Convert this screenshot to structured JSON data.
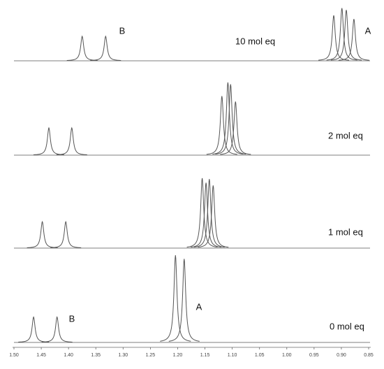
{
  "chart_data": {
    "type": "nmr",
    "color": "#555555",
    "xlim": [
      1.5,
      0.85
    ],
    "xticks": [
      {
        "value": 1.5,
        "label": "1.50"
      },
      1.45,
      {
        "value": 1.4,
        "label": "1.40"
      },
      1.35,
      {
        "value": 1.3,
        "label": "1.30"
      },
      1.25,
      {
        "value": 1.2,
        "label": "1.20"
      },
      1.15,
      {
        "value": 1.1,
        "label": "1.10"
      },
      1.05,
      {
        "value": 1.0,
        "label": "1.00"
      },
      0.95,
      {
        "value": 0.9,
        "label": "0.90"
      },
      0.85
    ],
    "ylim": [
      0,
      100
    ],
    "series": [
      {
        "name": "10 mol eq",
        "x": [
          1.375,
          1.332,
          0.914,
          0.899,
          0.891,
          0.877
        ],
        "values": [
          27,
          27,
          50,
          58,
          56,
          46
        ],
        "annotations": [
          "B",
          "A"
        ]
      },
      {
        "name": "2 mol eq",
        "x": [
          1.436,
          1.394,
          1.119,
          1.108,
          1.103,
          1.094
        ],
        "values": [
          30,
          30,
          65,
          80,
          78,
          59
        ],
        "annotations": []
      },
      {
        "name": "1 mol eq",
        "x": [
          1.448,
          1.405,
          1.155,
          1.148,
          1.142,
          1.135
        ],
        "values": [
          29,
          29,
          77,
          72,
          76,
          69
        ],
        "annotations": []
      },
      {
        "name": "0 mol eq",
        "x": [
          1.464,
          1.421,
          1.204,
          1.188
        ],
        "values": [
          28,
          28,
          96,
          92
        ],
        "annotations": [
          "B",
          "A"
        ]
      }
    ]
  }
}
